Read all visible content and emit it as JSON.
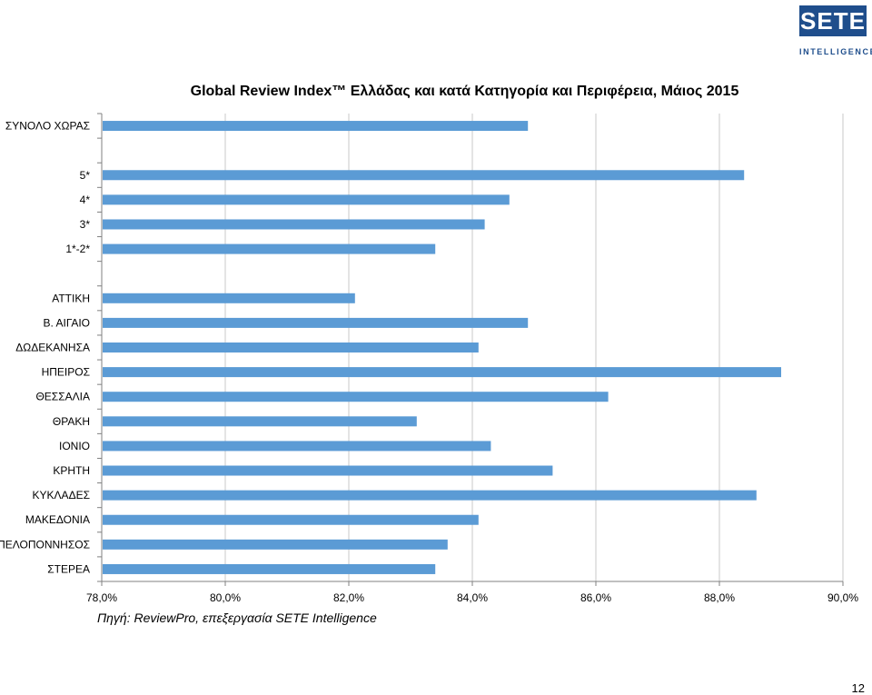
{
  "logo": {
    "brand": "SETE",
    "sub": "INTELLIGENCE"
  },
  "source_note": "Πηγή: ReviewPro, επεξεργασία SETE Intelligence",
  "page_number": "12",
  "colors": {
    "bar": "#5b9bd5",
    "grid": "#c8c8c8",
    "axis": "#808080",
    "logo": "#1f4e8c"
  },
  "chart_data": {
    "type": "bar",
    "orientation": "horizontal",
    "title": "Global Review Index™ Ελλάδας και κατά Κατηγορία και Περιφέρεια, Μάιος 2015",
    "xlabel": "",
    "ylabel": "",
    "xlim": [
      78,
      90
    ],
    "x_ticks": [
      78,
      80,
      82,
      84,
      86,
      88,
      90
    ],
    "x_tick_labels": [
      "78,0%",
      "80,0%",
      "82,0%",
      "84,0%",
      "86,0%",
      "88,0%",
      "90,0%"
    ],
    "grid": "vertical",
    "legend": "none",
    "categories": [
      "ΣΥΝΟΛΟ ΧΩΡΑΣ",
      "",
      "5*",
      "4*",
      "3*",
      "1*-2*",
      "",
      "ΑΤΤΙΚΗ",
      "Β. ΑΙΓΑΙΟ",
      "ΔΩΔΕΚΑΝΗΣΑ",
      "ΗΠΕΙΡΟΣ",
      "ΘΕΣΣΑΛΙΑ",
      "ΘΡΑΚΗ",
      "ΙΟΝΙΟ",
      "ΚΡΗΤΗ",
      "ΚΥΚΛΑΔΕΣ",
      "ΜΑΚΕΔΟΝΙΑ",
      "ΠΕΛΟΠΟΝΝΗΣΟΣ",
      "ΣΤΕΡΕΑ"
    ],
    "values": [
      84.9,
      null,
      88.4,
      84.6,
      84.2,
      83.4,
      null,
      82.1,
      84.9,
      84.1,
      89.0,
      86.2,
      83.1,
      84.3,
      85.3,
      88.6,
      84.1,
      83.6,
      83.4
    ]
  }
}
